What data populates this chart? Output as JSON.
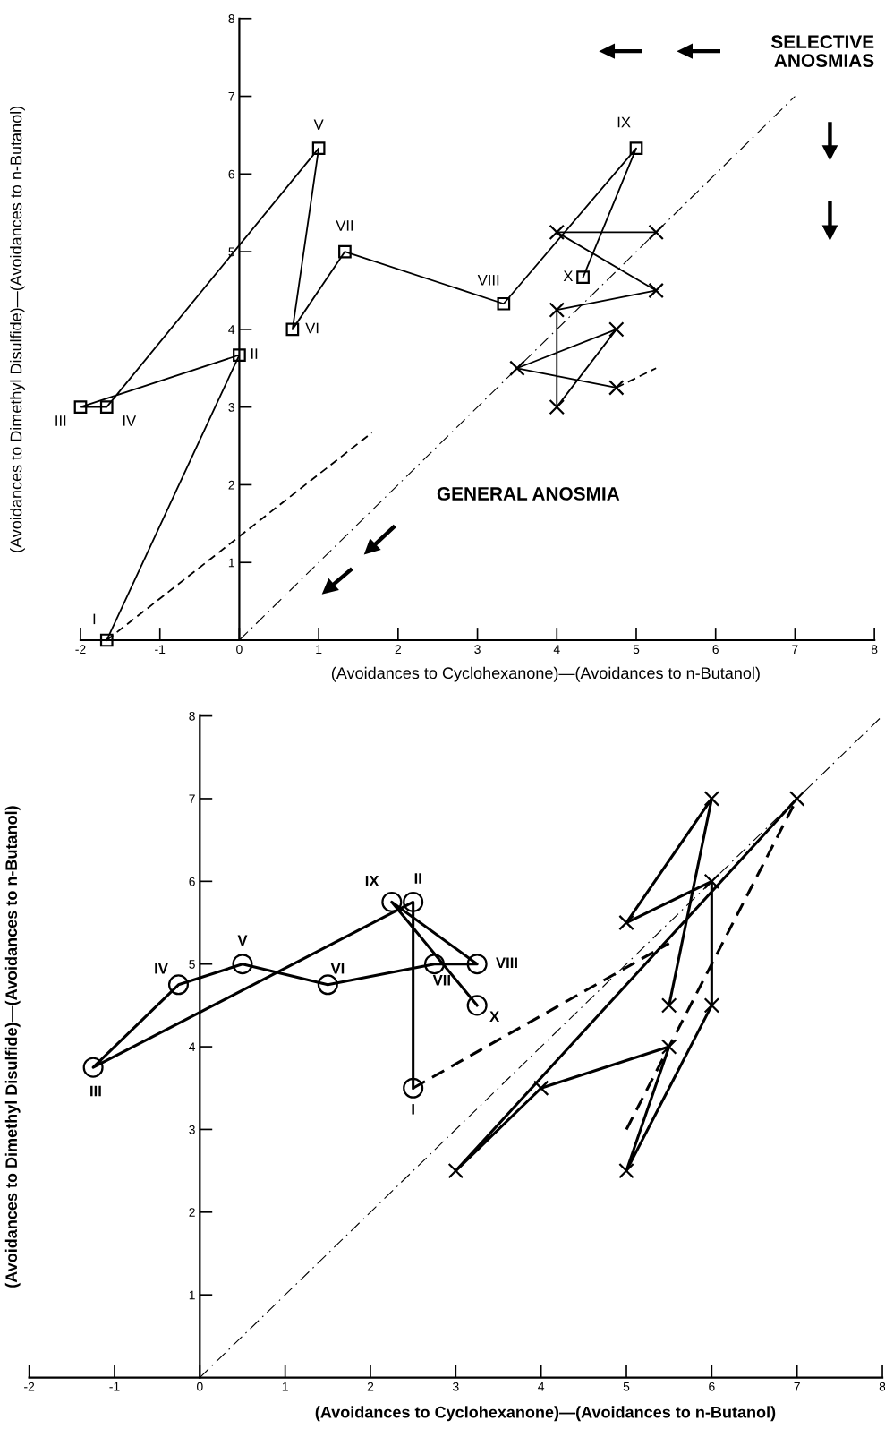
{
  "chart_data": [
    {
      "type": "line",
      "xlabel": "(Avoidances to Cyclohexanone)—(Avoidances to n-Butanol)",
      "ylabel": "(Avoidances to Dimethyl Disulfide)—(Avoidances to n-Butanol)",
      "xlim": [
        -2,
        8
      ],
      "ylim": [
        0,
        8
      ],
      "xticks": [
        -2,
        -1,
        0,
        1,
        2,
        3,
        4,
        5,
        6,
        7,
        8
      ],
      "yticks": [
        1,
        2,
        3,
        4,
        5,
        6,
        7,
        8
      ],
      "series": [
        {
          "type": "line",
          "color": "#000000",
          "marker": "square",
          "line_style": "solid",
          "x": [
            -1.67,
            0,
            -2,
            -1.67,
            1,
            0.67,
            1.33,
            3.33,
            5,
            4.33
          ],
          "values": [
            0,
            3.67,
            3,
            3,
            6.33,
            4,
            5,
            4.33,
            6.33,
            4.67
          ]
        },
        {
          "type": "line",
          "color": "#000000",
          "marker": "cross",
          "line_style": "solid",
          "x": [
            5.25,
            4,
            5.25,
            4,
            4,
            4.75,
            3.5,
            4.75
          ],
          "values": [
            5.25,
            5.25,
            4.5,
            4.25,
            3,
            4,
            3.5,
            3.25
          ]
        },
        {
          "type": "line",
          "color": "#000000",
          "marker": "none",
          "line_style": "dashed",
          "x": [
            4.75,
            5.25
          ],
          "values": [
            3.25,
            3.5
          ]
        },
        {
          "type": "line",
          "color": "#000000",
          "marker": "none",
          "line_style": "dashed",
          "x": [
            -1.67,
            1.67
          ],
          "values": [
            0,
            2.67
          ]
        },
        {
          "type": "line",
          "color": "#000000",
          "marker": "none",
          "line_style": "dashed",
          "x": [
            0,
            7
          ],
          "values": [
            0,
            7
          ]
        }
      ],
      "annotations": [
        {
          "text": "I",
          "x": -1.67,
          "y": 0
        },
        {
          "text": "II",
          "x": 0,
          "y": 3.67
        },
        {
          "text": "III",
          "x": -2,
          "y": 3
        },
        {
          "text": "IV",
          "x": -1.67,
          "y": 3
        },
        {
          "text": "V",
          "x": 1,
          "y": 6.33
        },
        {
          "text": "VI",
          "x": 0.67,
          "y": 4
        },
        {
          "text": "VII",
          "x": 1.33,
          "y": 5
        },
        {
          "text": "VIII",
          "x": 3.33,
          "y": 4.33
        },
        {
          "text": "IX",
          "x": 5,
          "y": 6.33
        },
        {
          "text": "X",
          "x": 4.33,
          "y": 4.67
        },
        "SELECTIVE\nANOSMIAS",
        "GENERAL ANOSMIA"
      ]
    },
    {
      "type": "line",
      "xlabel": "(Avoidances to Cyclohexanone)—(Avoidances to n-Butanol)",
      "ylabel": "(Avoidances to Dimethyl Disulfide)—(Avoidances to n-Butanol)",
      "xlim": [
        -2,
        8
      ],
      "ylim": [
        0,
        8
      ],
      "xticks": [
        -2,
        -1,
        0,
        1,
        2,
        3,
        4,
        5,
        6,
        7,
        8
      ],
      "yticks": [
        1,
        2,
        3,
        4,
        5,
        6,
        7,
        8
      ],
      "series": [
        {
          "type": "line",
          "color": "#000000",
          "marker": "circle",
          "line_style": "solid",
          "x": [
            2.5,
            2.5,
            -1.25,
            -0.25,
            0.5,
            1.5,
            2.75,
            3.25,
            2.25,
            3.25
          ],
          "values": [
            3.5,
            5.75,
            3.75,
            4.75,
            5,
            4.75,
            5,
            5,
            5.75,
            4.5
          ]
        },
        {
          "type": "line",
          "color": "#000000",
          "marker": "cross",
          "line_style": "solid",
          "x": [
            5.5,
            6,
            5,
            6,
            6,
            5,
            5.5,
            4,
            3,
            7
          ],
          "values": [
            4.5,
            7,
            5.5,
            6,
            4.5,
            2.5,
            4,
            3.5,
            2.5,
            7
          ]
        },
        {
          "type": "line",
          "color": "#000000",
          "marker": "none",
          "line_style": "dashed",
          "x": [
            2.5,
            5.5
          ],
          "values": [
            3.5,
            5.25
          ]
        },
        {
          "type": "line",
          "color": "#000000",
          "marker": "none",
          "line_style": "dashed",
          "x": [
            5,
            5.5,
            6,
            7
          ],
          "values": [
            3,
            4,
            5,
            7
          ]
        },
        {
          "type": "line",
          "color": "#000000",
          "marker": "none",
          "line_style": "dashed",
          "x": [
            0,
            8
          ],
          "values": [
            0,
            8
          ]
        }
      ],
      "annotations": [
        {
          "text": "I",
          "x": 2.5,
          "y": 3.5
        },
        {
          "text": "II",
          "x": 2.5,
          "y": 5.75
        },
        {
          "text": "III",
          "x": -1.25,
          "y": 3.75
        },
        {
          "text": "IV",
          "x": -0.25,
          "y": 4.75
        },
        {
          "text": "V",
          "x": 0.5,
          "y": 5
        },
        {
          "text": "VI",
          "x": 1.5,
          "y": 4.75
        },
        {
          "text": "VII",
          "x": 2.75,
          "y": 5
        },
        {
          "text": "VIII",
          "x": 3.25,
          "y": 5
        },
        {
          "text": "IX",
          "x": 2.25,
          "y": 5.75
        },
        {
          "text": "X",
          "x": 3.25,
          "y": 4.5
        }
      ]
    }
  ]
}
